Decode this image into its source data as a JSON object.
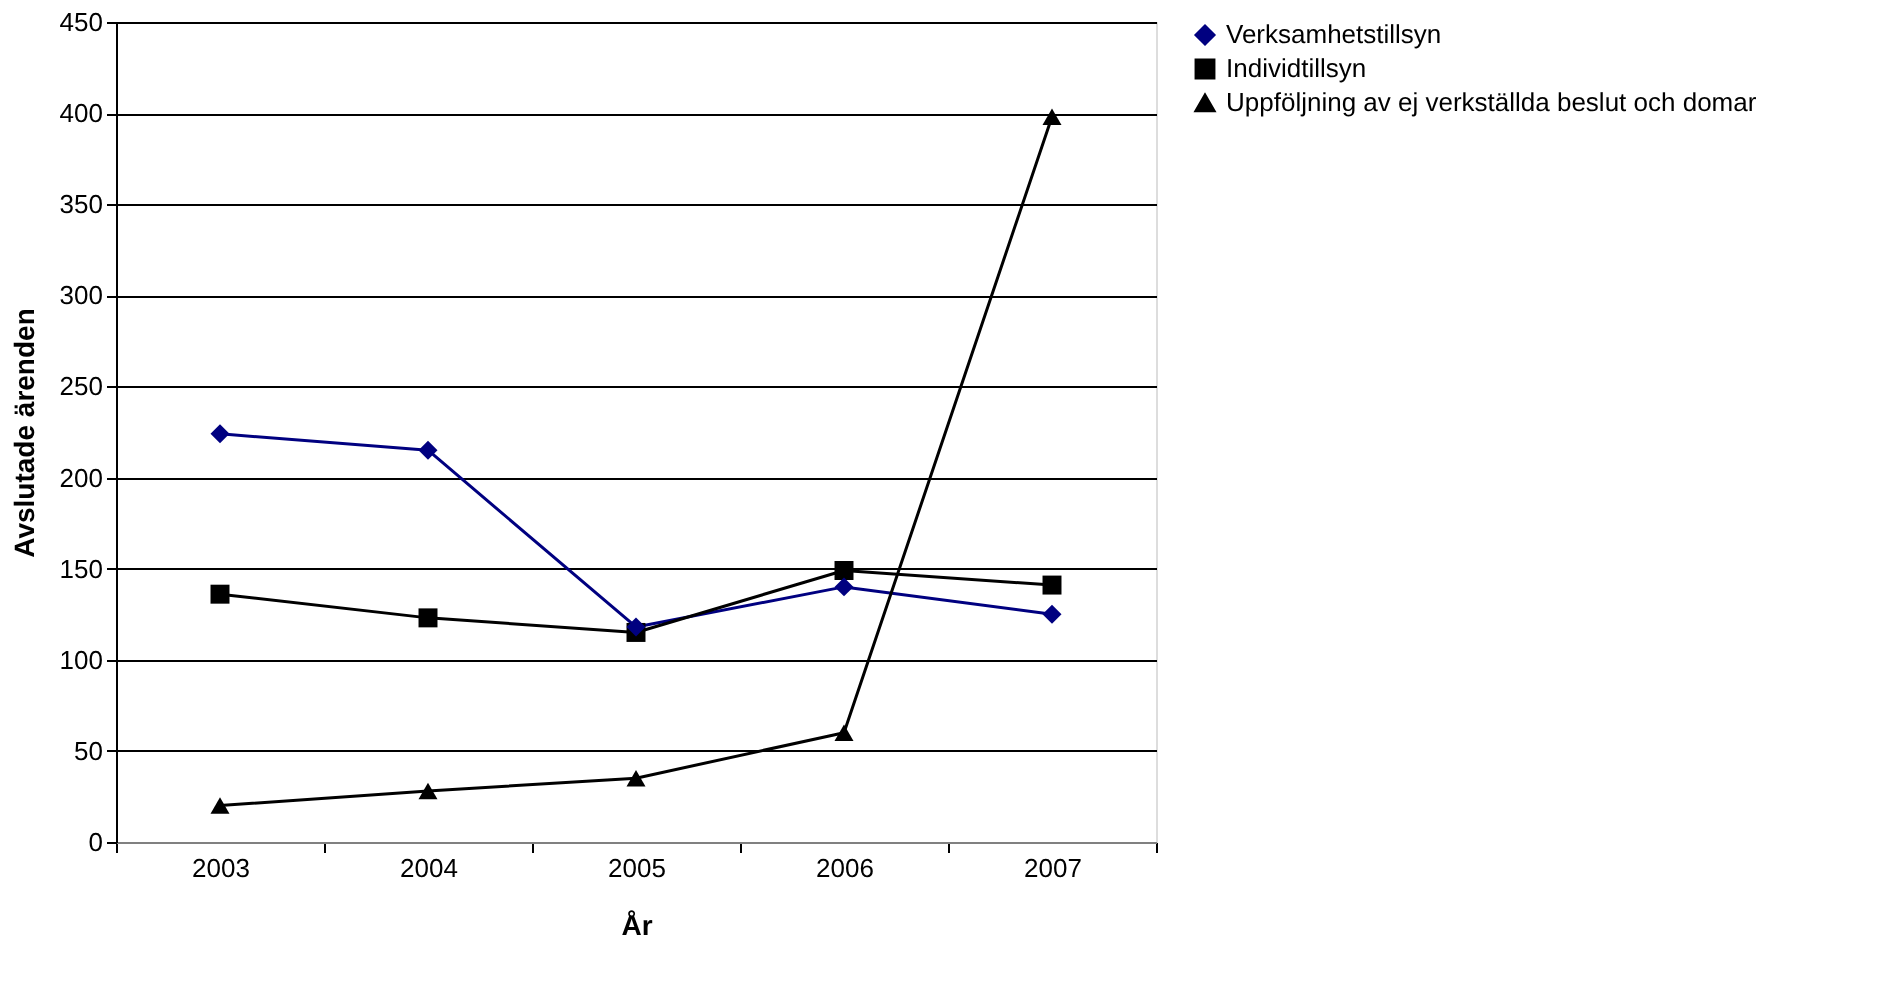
{
  "chart_data": {
    "type": "line",
    "xlabel": "År",
    "ylabel": "Avslutade ärenden",
    "categories": [
      "2003",
      "2004",
      "2005",
      "2006",
      "2007"
    ],
    "series": [
      {
        "name": "Verksamhetstillsyn",
        "color": "#000080",
        "marker": "diamond",
        "values": [
          224,
          215,
          118,
          140,
          125
        ]
      },
      {
        "name": "Individtillsyn",
        "color": "#000000",
        "marker": "square",
        "values": [
          136,
          123,
          115,
          149,
          141
        ]
      },
      {
        "name": "Uppföljning av ej verkställda beslut och domar",
        "color": "#000000",
        "marker": "triangle",
        "values": [
          20,
          28,
          35,
          60,
          398
        ]
      }
    ],
    "ylim": [
      0,
      450
    ],
    "yticks": [
      0,
      50,
      100,
      150,
      200,
      250,
      300,
      350,
      400,
      450
    ],
    "grid": "y",
    "legend": "right",
    "line_style": "solid"
  }
}
